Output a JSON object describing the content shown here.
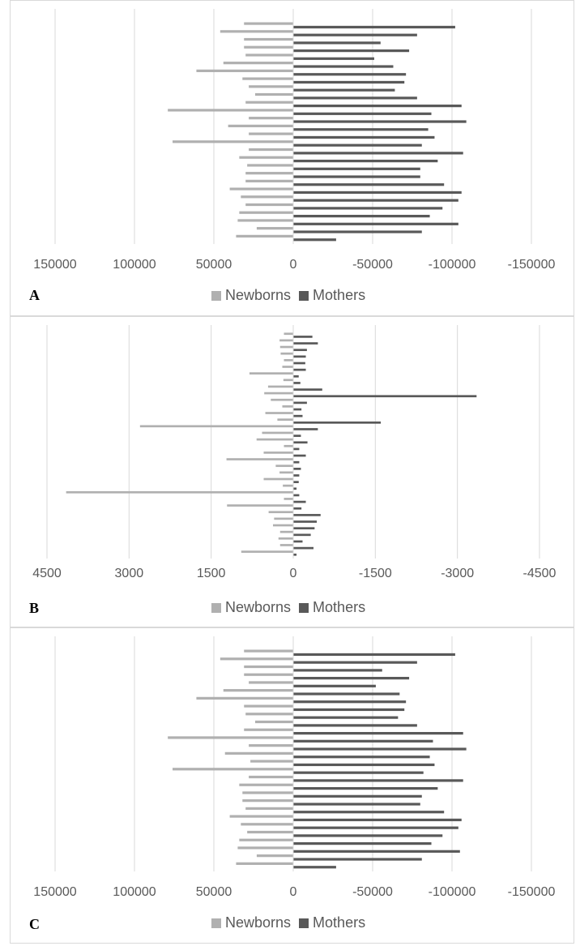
{
  "colors": {
    "newborns": "#b0b0b0",
    "mothers": "#595959",
    "gridline": "#d9d9d9"
  },
  "chart_data": [
    {
      "panel": "A",
      "type": "bar",
      "orientation": "horizontal-mirrored",
      "note_sign": "Mothers plotted as negative values; ticks shown right of 0 are negative",
      "xlim": [
        150000,
        -150000
      ],
      "xticks": [
        150000,
        100000,
        50000,
        0,
        -50000,
        -100000,
        -150000
      ],
      "tick_labels": [
        "150000",
        "100000",
        "50000",
        "0",
        "-50000",
        "-100000",
        "-150000"
      ],
      "legend": [
        "Newborns",
        "Mothers"
      ],
      "series": [
        {
          "name": "Newborns",
          "values": [
            31000,
            46000,
            31000,
            31000,
            30000,
            44000,
            61000,
            32000,
            28000,
            24000,
            30000,
            79000,
            28000,
            41000,
            28000,
            76000,
            28000,
            34000,
            29000,
            30000,
            30000,
            40000,
            33000,
            30000,
            34000,
            35000,
            23000,
            36000
          ]
        },
        {
          "name": "Mothers",
          "values": [
            -102000,
            -78000,
            -55000,
            -73000,
            -51000,
            -63000,
            -71000,
            -70000,
            -64000,
            -78000,
            -106000,
            -87000,
            -109000,
            -85000,
            -89000,
            -81000,
            -107000,
            -91000,
            -80000,
            -80000,
            -95000,
            -106000,
            -104000,
            -94000,
            -86000,
            -104000,
            -81000,
            -27000
          ]
        }
      ]
    },
    {
      "panel": "B",
      "type": "bar",
      "orientation": "horizontal-mirrored",
      "note_sign": "Mothers plotted as negative values; ticks shown right of 0 are negative",
      "xlim": [
        4500,
        -4500
      ],
      "xticks": [
        4500,
        3000,
        1500,
        0,
        -1500,
        -3000,
        -4500
      ],
      "tick_labels": [
        "4500",
        "3000",
        "1500",
        "0",
        "-1500",
        "-3000",
        "-4500"
      ],
      "legend": [
        "Newborns",
        "Mothers"
      ],
      "series": [
        {
          "name": "Newborns",
          "values": [
            170,
            250,
            240,
            230,
            170,
            200,
            800,
            180,
            460,
            530,
            410,
            200,
            510,
            290,
            2800,
            570,
            670,
            170,
            540,
            1220,
            320,
            250,
            540,
            190,
            4150,
            170,
            1210,
            450,
            350,
            370,
            240,
            270,
            240,
            950
          ]
        },
        {
          "name": "Mothers",
          "values": [
            -350,
            -450,
            -250,
            -230,
            -220,
            -230,
            -100,
            -130,
            -530,
            -3350,
            -250,
            -150,
            -170,
            -1600,
            -450,
            -140,
            -260,
            -110,
            -230,
            -110,
            -140,
            -110,
            -100,
            -60,
            -110,
            -230,
            -150,
            -500,
            -430,
            -390,
            -320,
            -170,
            -370,
            -60
          ]
        }
      ]
    },
    {
      "panel": "C",
      "type": "bar",
      "orientation": "horizontal-mirrored",
      "note_sign": "Mothers plotted as negative values; ticks shown right of 0 are negative",
      "xlim": [
        150000,
        -150000
      ],
      "xticks": [
        150000,
        100000,
        50000,
        0,
        -50000,
        -100000,
        -150000
      ],
      "tick_labels": [
        "150000",
        "100000",
        "50000",
        "0",
        "-50000",
        "-100000",
        "-150000"
      ],
      "legend": [
        "Newborns",
        "Mothers"
      ],
      "series": [
        {
          "name": "Newborns",
          "values": [
            31000,
            46000,
            31000,
            31000,
            28000,
            44000,
            61000,
            31000,
            30000,
            24000,
            31000,
            79000,
            28000,
            43000,
            27000,
            76000,
            28000,
            34000,
            32000,
            32000,
            30000,
            40000,
            33000,
            29000,
            34000,
            35000,
            23000,
            36000
          ]
        },
        {
          "name": "Mothers",
          "values": [
            -102000,
            -78000,
            -56000,
            -73000,
            -52000,
            -67000,
            -71000,
            -70000,
            -66000,
            -78000,
            -107000,
            -88000,
            -109000,
            -86000,
            -89000,
            -82000,
            -107000,
            -91000,
            -81000,
            -80000,
            -95000,
            -106000,
            -104000,
            -94000,
            -87000,
            -105000,
            -81000,
            -27000
          ]
        }
      ]
    }
  ]
}
